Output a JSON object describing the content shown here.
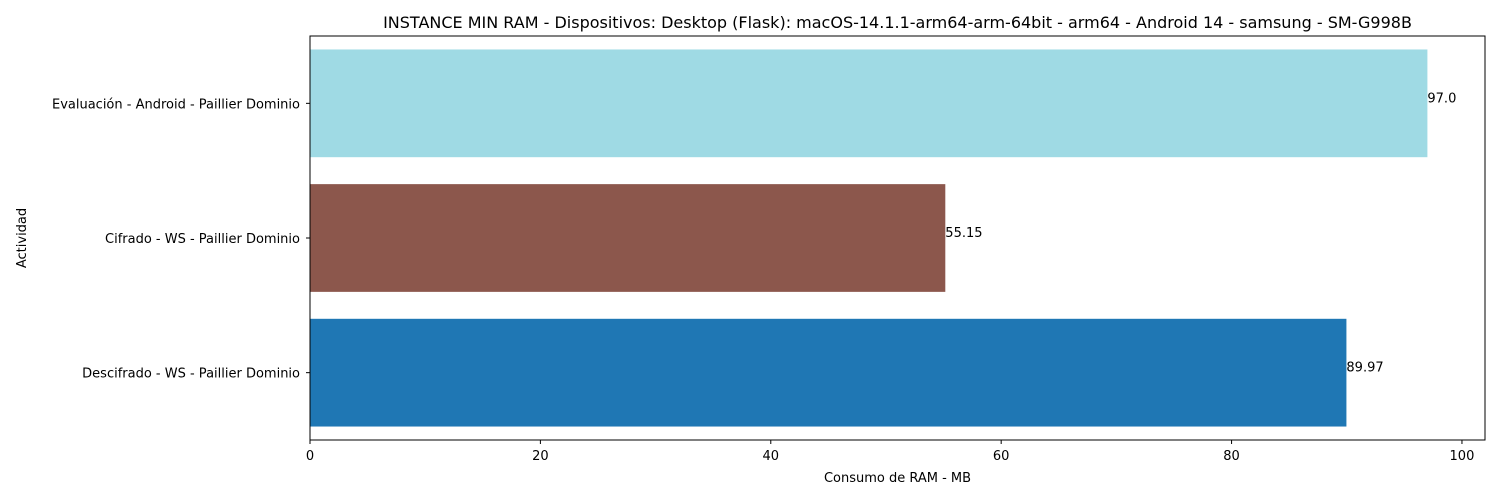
{
  "chart_data": {
    "type": "bar",
    "orientation": "horizontal",
    "title": "INSTANCE MIN RAM - Dispositivos: Desktop (Flask): macOS-14.1.1-arm64-arm-64bit - arm64 - Android 14 - samsung - SM-G998B",
    "xlabel": "Consumo de RAM - MB",
    "ylabel": "Actividad",
    "xlim": [
      0,
      102
    ],
    "xticks": [
      0,
      20,
      40,
      60,
      80,
      100
    ],
    "grid": false,
    "categories": [
      "Evaluación - Android - Paillier Dominio",
      "Cifrado - WS - Paillier Dominio",
      "Descifrado - WS - Paillier Dominio"
    ],
    "values": [
      97.0,
      55.15,
      89.97
    ],
    "value_labels": [
      "97.0",
      "55.15",
      "89.97"
    ],
    "colors": [
      "#9fdae4",
      "#8c574c",
      "#1f77b4"
    ]
  }
}
